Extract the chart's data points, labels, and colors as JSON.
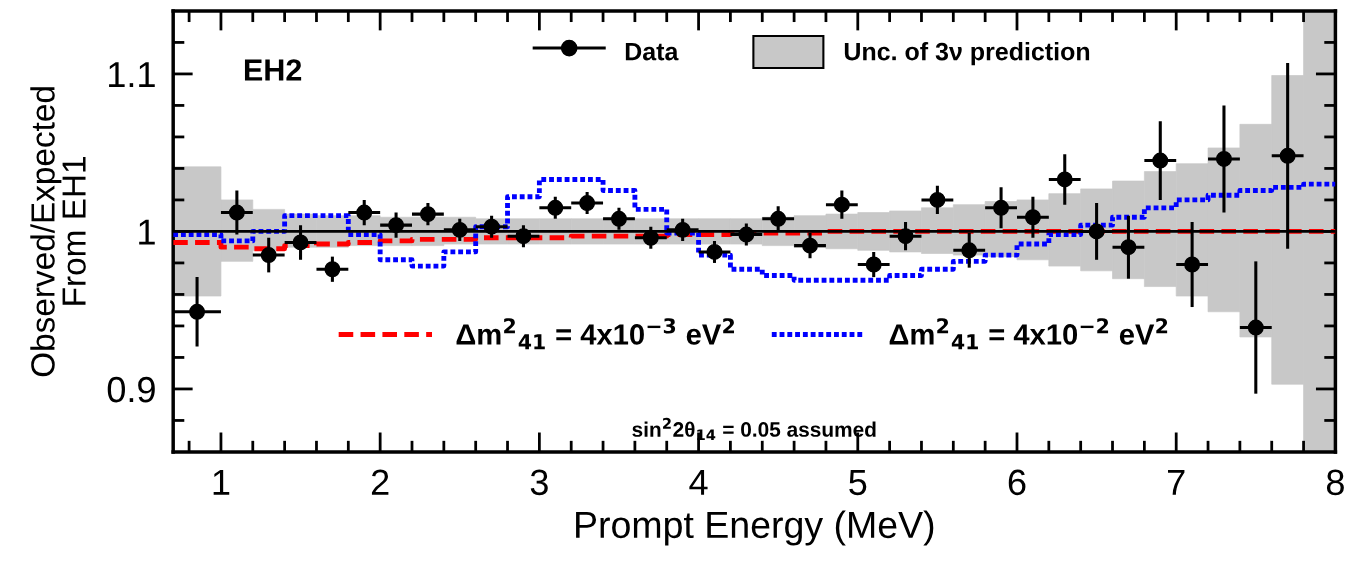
{
  "chart_data": {
    "type": "scatter",
    "xlabel": "Prompt Energy (MeV)",
    "ylabel": "Observed/Expected\nFrom EH1",
    "xlim": [
      0.7,
      8
    ],
    "ylim": [
      0.86,
      1.14
    ],
    "xticks": [
      {
        "value": 0.8,
        "label": null
      },
      1,
      {
        "value": 1.2,
        "label": null
      },
      {
        "value": 1.4,
        "label": null
      },
      {
        "value": 1.6,
        "label": null
      },
      {
        "value": 1.8,
        "label": null
      },
      2,
      {
        "value": 2.2,
        "label": null
      },
      {
        "value": 2.4,
        "label": null
      },
      {
        "value": 2.6,
        "label": null
      },
      {
        "value": 2.8,
        "label": null
      },
      3,
      {
        "value": 3.2,
        "label": null
      },
      {
        "value": 3.4,
        "label": null
      },
      {
        "value": 3.6,
        "label": null
      },
      {
        "value": 3.8,
        "label": null
      },
      4,
      {
        "value": 4.2,
        "label": null
      },
      {
        "value": 4.4,
        "label": null
      },
      {
        "value": 4.6,
        "label": null
      },
      {
        "value": 4.8,
        "label": null
      },
      5,
      {
        "value": 5.2,
        "label": null
      },
      {
        "value": 5.4,
        "label": null
      },
      {
        "value": 5.6,
        "label": null
      },
      {
        "value": 5.8,
        "label": null
      },
      6,
      {
        "value": 6.2,
        "label": null
      },
      {
        "value": 6.4,
        "label": null
      },
      {
        "value": 6.6,
        "label": null
      },
      {
        "value": 6.8,
        "label": null
      },
      7,
      {
        "value": 7.2,
        "label": null
      },
      {
        "value": 7.4,
        "label": null
      },
      {
        "value": 7.6,
        "label": null
      },
      {
        "value": 7.8,
        "label": null
      },
      8
    ],
    "yticks": [
      {
        "value": 0.88,
        "label": null
      },
      0.9,
      {
        "value": 0.92,
        "label": null
      },
      {
        "value": 0.94,
        "label": null
      },
      {
        "value": 0.96,
        "label": null
      },
      {
        "value": 0.98,
        "label": null
      },
      1,
      {
        "value": 1.02,
        "label": null
      },
      {
        "value": 1.04,
        "label": null
      },
      {
        "value": 1.06,
        "label": null
      },
      {
        "value": 1.08,
        "label": null
      },
      1.1,
      {
        "value": 1.12,
        "label": null
      }
    ],
    "grid": false,
    "legend": "top",
    "annotations": [
      "EH2",
      "sin$^{2}$2θ$_{14}$ = 0.05 assumed"
    ],
    "series": [
      {
        "name": "Unc. of 3ν prediction",
        "type": "step",
        "color": "#000000",
        "colors": [
          "#c8c8c8",
          "#c8c8c8",
          "#c8c8c8",
          "#c8c8c8",
          "#c8c8c8",
          "#c8c8c8",
          "#c8c8c8",
          "#c8c8c8",
          "#c8c8c8",
          "#c8c8c8",
          "#c8c8c8",
          "#c8c8c8",
          "#c8c8c8",
          "#c8c8c8",
          "#c8c8c8",
          "#c8c8c8",
          "#c8c8c8",
          "#c8c8c8",
          "#c8c8c8",
          "#c8c8c8",
          "#c8c8c8",
          "#c8c8c8",
          "#c8c8c8",
          "#c8c8c8",
          "#c8c8c8",
          "#c8c8c8",
          "#c8c8c8",
          "#c8c8c8",
          "#c8c8c8",
          "#c8c8c8",
          "#c8c8c8",
          "#c8c8c8",
          "#c8c8c8",
          "#c8c8c8",
          "#c8c8c8",
          "#c8c8c8",
          "#c8c8c8"
        ],
        "x": [
          0.7,
          1.0,
          1.2,
          1.4,
          1.6,
          1.8,
          2.0,
          2.2,
          2.4,
          2.6,
          2.8,
          3.0,
          3.2,
          3.4,
          3.6,
          3.8,
          4.0,
          4.2,
          4.4,
          4.6,
          4.8,
          5.0,
          5.2,
          5.4,
          5.6,
          5.8,
          6.0,
          6.2,
          6.4,
          6.6,
          6.8,
          7.0,
          7.2,
          7.4,
          7.6,
          7.8,
          8.0
        ],
        "values": [
          1,
          1,
          1,
          1,
          1,
          1,
          1,
          1,
          1,
          1,
          1,
          1,
          1,
          1,
          1,
          1,
          1,
          1,
          1,
          1,
          1,
          1,
          1,
          1,
          1,
          1,
          1,
          1,
          1,
          1,
          1,
          1,
          1,
          1,
          1,
          1,
          1
        ],
        "upper": [
          1.041,
          1.02,
          1.014,
          1.011,
          1.01,
          1.01,
          1.009,
          1.009,
          1.009,
          1.008,
          1.008,
          1.008,
          1.008,
          1.008,
          1.008,
          1.008,
          1.008,
          1.008,
          1.009,
          1.01,
          1.011,
          1.012,
          1.013,
          1.015,
          1.017,
          1.019,
          1.02,
          1.024,
          1.027,
          1.032,
          1.038,
          1.043,
          1.053,
          1.068,
          1.099,
          1.14,
          1.14
        ],
        "lower": [
          0.959,
          0.981,
          0.988,
          0.99,
          0.99,
          0.991,
          0.991,
          0.991,
          0.992,
          0.992,
          0.992,
          0.992,
          0.992,
          0.992,
          0.992,
          0.992,
          0.992,
          0.992,
          0.991,
          0.99,
          0.989,
          0.988,
          0.987,
          0.986,
          0.985,
          0.984,
          0.982,
          0.978,
          0.975,
          0.97,
          0.965,
          0.959,
          0.949,
          0.933,
          0.903,
          0.86,
          0.86
        ]
      },
      {
        "name": "Δm$^{2}$$_{41}$ = 4x10$^{−3}$ eV$^{2}$",
        "type": "step",
        "color": "#ff0000",
        "line_style": "dashed",
        "x": [
          0.7,
          1.0,
          1.2,
          1.4,
          1.6,
          1.8,
          2.0,
          2.2,
          2.4,
          2.6,
          2.8,
          3.0,
          3.2,
          3.4,
          3.6,
          3.8,
          4.0,
          4.2,
          4.4,
          4.6,
          4.8,
          5.0,
          5.2,
          5.4,
          5.6,
          5.8,
          6.0,
          6.2,
          6.4,
          6.6,
          6.8,
          7.0,
          7.2,
          7.4,
          7.6,
          7.8,
          8.0
        ],
        "values": [
          0.993,
          0.99,
          0.989,
          0.991,
          0.992,
          0.993,
          0.994,
          0.995,
          0.995,
          0.996,
          0.996,
          0.996,
          0.997,
          0.997,
          0.997,
          0.998,
          0.998,
          0.999,
          0.999,
          0.999,
          1.0,
          1.0,
          1.0,
          1.0,
          1.0,
          1.0,
          1.0,
          1.0,
          1.0,
          1.0,
          1.0,
          1.0,
          1.0,
          1.0,
          1.0,
          1.0,
          1.0
        ]
      },
      {
        "name": "Δm$^{2}$$_{41}$ = 4x10$^{−2}$ eV$^{2}$",
        "type": "step",
        "color": "#0000ff",
        "line_style": "dotted",
        "x": [
          0.7,
          1.0,
          1.2,
          1.4,
          1.6,
          1.8,
          2.0,
          2.2,
          2.4,
          2.6,
          2.8,
          3.0,
          3.2,
          3.4,
          3.6,
          3.8,
          4.0,
          4.2,
          4.4,
          4.6,
          4.8,
          5.0,
          5.2,
          5.4,
          5.6,
          5.8,
          6.0,
          6.2,
          6.4,
          6.6,
          6.8,
          7.0,
          7.2,
          7.4,
          7.6,
          7.8,
          8.0
        ],
        "values": [
          0.998,
          0.994,
          1.0,
          1.01,
          1.01,
          0.998,
          0.982,
          0.978,
          0.987,
          1.003,
          1.022,
          1.033,
          1.033,
          1.026,
          1.014,
          0.999,
          0.985,
          0.976,
          0.972,
          0.969,
          0.969,
          0.969,
          0.972,
          0.976,
          0.981,
          0.985,
          0.992,
          0.998,
          1.004,
          1.009,
          1.015,
          1.02,
          1.023,
          1.026,
          1.028,
          1.03,
          1.03
        ]
      },
      {
        "name": "Data",
        "color": "#000000",
        "marker": "circle",
        "x": [
          0.85,
          1.1,
          1.3,
          1.5,
          1.7,
          1.9,
          2.1,
          2.3,
          2.5,
          2.7,
          2.9,
          3.1,
          3.3,
          3.5,
          3.7,
          3.9,
          4.1,
          4.3,
          4.5,
          4.7,
          4.9,
          5.1,
          5.3,
          5.5,
          5.7,
          5.9,
          6.1,
          6.3,
          6.5,
          6.7,
          6.9,
          7.1,
          7.3,
          7.5,
          7.7
        ],
        "values": [
          0.949,
          1.012,
          0.985,
          0.993,
          0.976,
          1.012,
          1.004,
          1.011,
          1.001,
          1.003,
          0.997,
          1.015,
          1.018,
          1.008,
          0.996,
          1.001,
          0.987,
          0.998,
          1.008,
          0.991,
          1.017,
          0.979,
          0.997,
          1.02,
          0.988,
          1.015,
          1.009,
          1.033,
          1.0,
          0.99,
          1.045,
          0.979,
          1.046,
          0.939,
          1.048
        ],
        "errors": [
          0.022,
          0.014,
          0.011,
          0.011,
          0.008,
          0.008,
          0.008,
          0.007,
          0.007,
          0.007,
          0.007,
          0.007,
          0.007,
          0.007,
          0.007,
          0.007,
          0.007,
          0.007,
          0.008,
          0.008,
          0.009,
          0.008,
          0.009,
          0.009,
          0.011,
          0.013,
          0.013,
          0.016,
          0.018,
          0.02,
          0.025,
          0.027,
          0.034,
          0.042,
          0.059
        ],
        "xerrors": [
          0.15,
          0.1,
          0.1,
          0.1,
          0.1,
          0.1,
          0.1,
          0.1,
          0.1,
          0.1,
          0.1,
          0.1,
          0.1,
          0.1,
          0.1,
          0.1,
          0.1,
          0.1,
          0.1,
          0.1,
          0.1,
          0.1,
          0.1,
          0.1,
          0.1,
          0.1,
          0.1,
          0.1,
          0.1,
          0.1,
          0.1,
          0.1,
          0.1,
          0.1,
          0.1
        ]
      }
    ]
  }
}
